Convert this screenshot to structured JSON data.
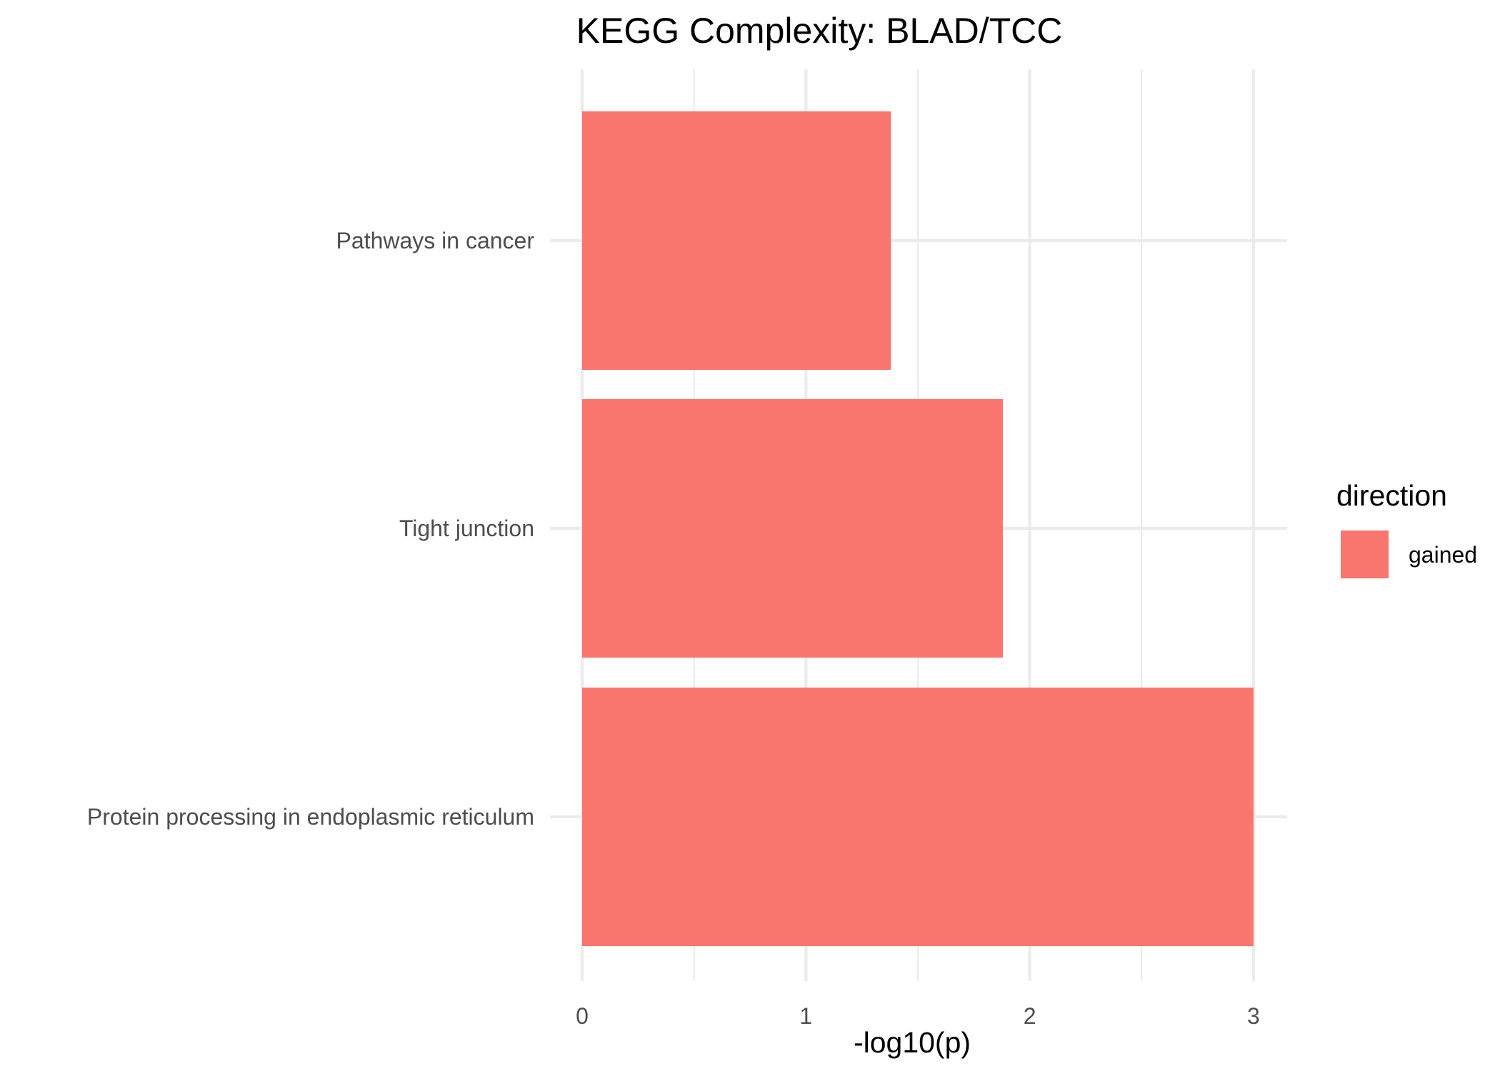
{
  "chart_data": {
    "type": "bar",
    "orientation": "horizontal",
    "title": "KEGG Complexity: BLAD/TCC",
    "xlabel": "-log10(p)",
    "ylabel": "",
    "categories": [
      "Pathways in cancer",
      "Tight junction",
      "Protein processing in endoplasmic reticulum"
    ],
    "series": [
      {
        "name": "gained",
        "values": [
          1.38,
          1.88,
          3.0
        ],
        "color": "#F8766D"
      }
    ],
    "x_ticks": [
      "0",
      "1",
      "2",
      "3"
    ],
    "xlim": [
      0,
      3.15
    ],
    "grid": true,
    "legend": {
      "title": "direction",
      "position": "right",
      "items": [
        "gained"
      ]
    }
  }
}
